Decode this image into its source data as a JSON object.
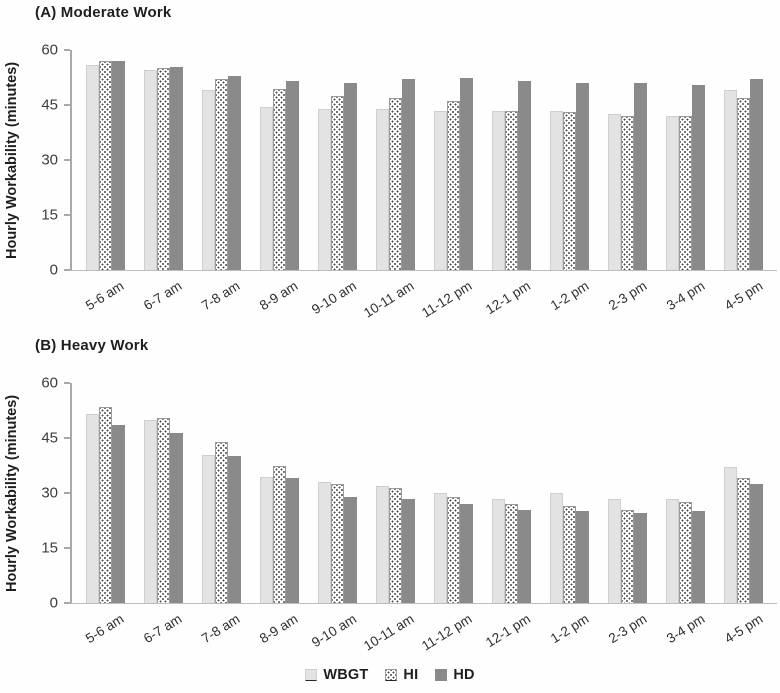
{
  "figure": {
    "colors": {
      "wbgt_fill": "#e3e3e3",
      "hi_background": "#ffffff",
      "hi_dot": "#4a4a4a",
      "hi_border": "#9b9b9b",
      "hd_fill": "#8a8a8a",
      "axis_line": "#a9a9a9",
      "baseline": "#bdbdbd"
    }
  },
  "chart_data": [
    {
      "type": "bar",
      "title": "(A) Moderate Work",
      "xlabel": "",
      "ylabel": "Hourly Workability (minutes)",
      "ylim": [
        0,
        60
      ],
      "yticks": [
        0,
        15,
        30,
        45,
        60
      ],
      "grid": "off",
      "legend_position": "shared-bottom",
      "categories": [
        "5-6 am",
        "6-7 am",
        "7-8 am",
        "8-9 am",
        "9-10 am",
        "10-11 am",
        "11-12 pm",
        "12-1 pm",
        "1-2 pm",
        "2-3 pm",
        "3-4 pm",
        "4-5 pm"
      ],
      "series": [
        {
          "name": "WBGT",
          "values": [
            56,
            54.5,
            49,
            44.5,
            44,
            44,
            43.5,
            43.5,
            43.5,
            42.5,
            42,
            49
          ]
        },
        {
          "name": "HI",
          "values": [
            57,
            55,
            52,
            49.5,
            47.5,
            47,
            46,
            43.5,
            43,
            42,
            42,
            47
          ]
        },
        {
          "name": "HD",
          "values": [
            57,
            55.5,
            53,
            51.5,
            51,
            52,
            52.5,
            51.5,
            51,
            51,
            50.5,
            52
          ]
        }
      ]
    },
    {
      "type": "bar",
      "title": "(B) Heavy Work",
      "xlabel": "",
      "ylabel": "Hourly Workability (minutes)",
      "ylim": [
        0,
        60
      ],
      "yticks": [
        0,
        15,
        30,
        45,
        60
      ],
      "grid": "off",
      "legend_position": "shared-bottom",
      "categories": [
        "5-6 am",
        "6-7 am",
        "7-8 am",
        "8-9 am",
        "9-10 am",
        "10-11 am",
        "11-12 pm",
        "12-1 pm",
        "1-2 pm",
        "2-3 pm",
        "3-4 pm",
        "4-5 pm"
      ],
      "series": [
        {
          "name": "WBGT",
          "values": [
            51.5,
            50,
            40.5,
            34.5,
            33,
            32,
            30,
            28.5,
            30,
            28.5,
            28.5,
            37
          ]
        },
        {
          "name": "HI",
          "values": [
            53.5,
            50.5,
            44,
            37.5,
            32.5,
            31.5,
            29,
            27,
            26.5,
            25.5,
            27.5,
            34
          ]
        },
        {
          "name": "HD",
          "values": [
            48.5,
            46.5,
            40,
            34,
            29,
            28.5,
            27,
            25.5,
            25,
            24.5,
            25,
            32.5
          ]
        }
      ]
    }
  ],
  "legend": {
    "items": [
      {
        "label": "WBGT"
      },
      {
        "label": "HI"
      },
      {
        "label": "HD"
      }
    ]
  }
}
